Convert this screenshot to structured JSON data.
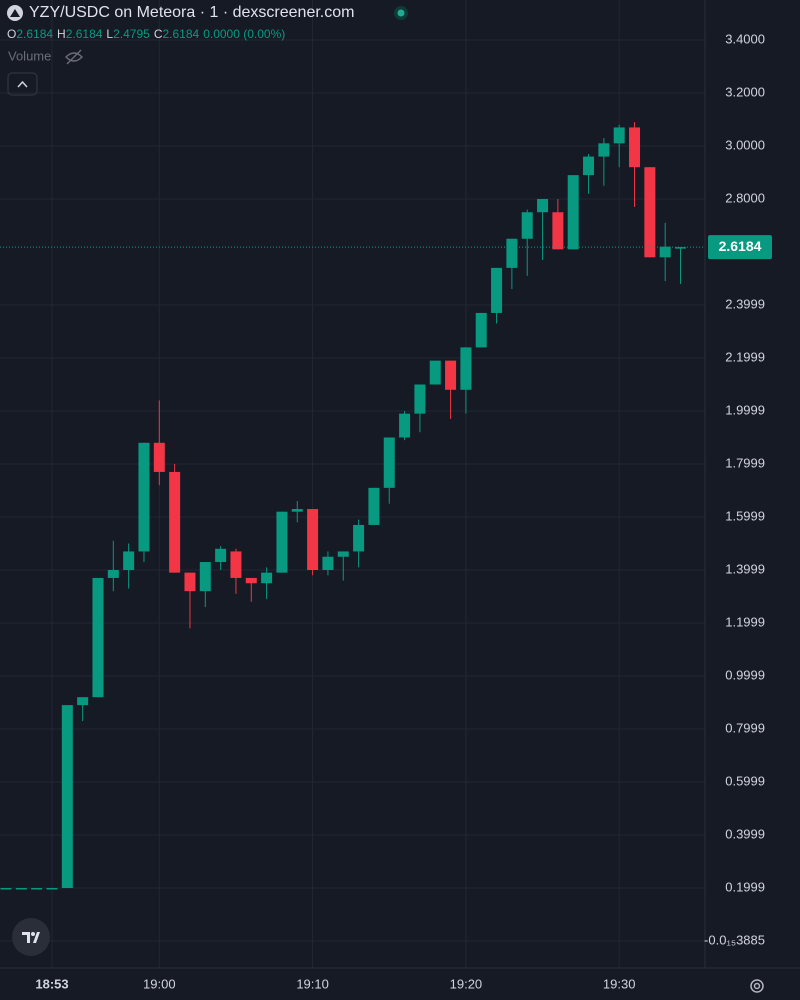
{
  "chart_data": {
    "type": "candlestick",
    "title": "YZY/USDC on Meteora · 1 · dexscreener.com",
    "legend": {
      "O": 2.6184,
      "H": 2.6184,
      "L": 2.4795,
      "C": 2.6184,
      "change": "0.0000 (0.00%)"
    },
    "legend_keys": [
      "O",
      "H",
      "L",
      "C"
    ],
    "volume_label": "Volume",
    "last_price": 2.6184,
    "up_color": "#089981",
    "down_color": "#f23645",
    "grid": true,
    "ylim": [
      -0.1019,
      3.5509
    ],
    "yticks": [
      {
        "value": 3.4,
        "label": "3.4000"
      },
      {
        "value": 3.2,
        "label": "3.2000"
      },
      {
        "value": 3.0,
        "label": "3.0000"
      },
      {
        "value": 2.8,
        "label": "2.8000"
      },
      2.3999,
      2.1999,
      1.9999,
      1.7999,
      1.5999,
      1.3999,
      1.1999,
      0.9999,
      0.7999,
      0.5999,
      0.3999,
      0.1999,
      {
        "value": -3.885e-16,
        "label": "-0.0₁₅3885"
      }
    ],
    "categories": [
      null,
      null,
      null,
      "18:53",
      null,
      null,
      null,
      null,
      null,
      null,
      "19:00",
      null,
      null,
      null,
      null,
      null,
      null,
      null,
      null,
      null,
      "19:10",
      null,
      null,
      null,
      null,
      null,
      null,
      null,
      null,
      null,
      "19:20",
      null,
      null,
      null,
      null,
      null,
      null,
      null,
      null,
      null,
      "19:30",
      null,
      null,
      null,
      null
    ],
    "open": [
      0.2,
      0.2,
      0.2,
      0.2,
      0.2,
      0.89,
      0.92,
      1.37,
      1.4,
      1.47,
      1.88,
      1.77,
      1.39,
      1.32,
      1.43,
      1.47,
      1.37,
      1.35,
      1.39,
      1.62,
      1.63,
      1.4,
      1.45,
      1.47,
      1.57,
      1.71,
      1.9,
      1.99,
      2.1,
      2.19,
      2.08,
      2.24,
      2.37,
      2.54,
      2.65,
      2.75,
      2.75,
      2.61,
      2.89,
      2.96,
      3.01,
      3.07,
      2.92,
      2.58,
      2.6184
    ],
    "high": [
      0.2,
      0.2,
      0.2,
      0.2,
      0.89,
      0.92,
      1.37,
      1.51,
      1.5,
      1.88,
      2.04,
      1.8,
      1.39,
      1.43,
      1.49,
      1.48,
      1.37,
      1.41,
      1.62,
      1.66,
      1.63,
      1.47,
      1.47,
      1.59,
      1.71,
      1.9,
      2.0,
      2.1,
      2.19,
      2.19,
      2.24,
      2.37,
      2.54,
      2.65,
      2.76,
      2.8,
      2.8,
      2.89,
      2.97,
      3.03,
      3.08,
      3.09,
      2.92,
      2.71,
      2.6184
    ],
    "low": [
      0.2,
      0.2,
      0.2,
      0.2,
      0.2,
      0.83,
      0.92,
      1.32,
      1.33,
      1.43,
      1.72,
      1.39,
      1.18,
      1.26,
      1.4,
      1.31,
      1.28,
      1.29,
      1.39,
      1.58,
      1.38,
      1.38,
      1.36,
      1.41,
      1.57,
      1.65,
      1.89,
      1.92,
      2.1,
      1.97,
      1.99,
      2.24,
      2.33,
      2.46,
      2.51,
      2.57,
      2.61,
      2.61,
      2.82,
      2.85,
      2.92,
      2.77,
      2.58,
      2.49,
      2.4795
    ],
    "close": [
      0.2,
      0.2,
      0.2,
      0.2,
      0.89,
      0.92,
      1.37,
      1.4,
      1.47,
      1.88,
      1.77,
      1.39,
      1.32,
      1.43,
      1.48,
      1.37,
      1.35,
      1.39,
      1.62,
      1.63,
      1.4,
      1.45,
      1.47,
      1.57,
      1.71,
      1.9,
      1.99,
      2.1,
      2.19,
      2.08,
      2.24,
      2.37,
      2.54,
      2.65,
      2.75,
      2.8,
      2.61,
      2.89,
      2.96,
      3.01,
      3.07,
      2.92,
      2.58,
      2.62,
      2.6184
    ]
  }
}
